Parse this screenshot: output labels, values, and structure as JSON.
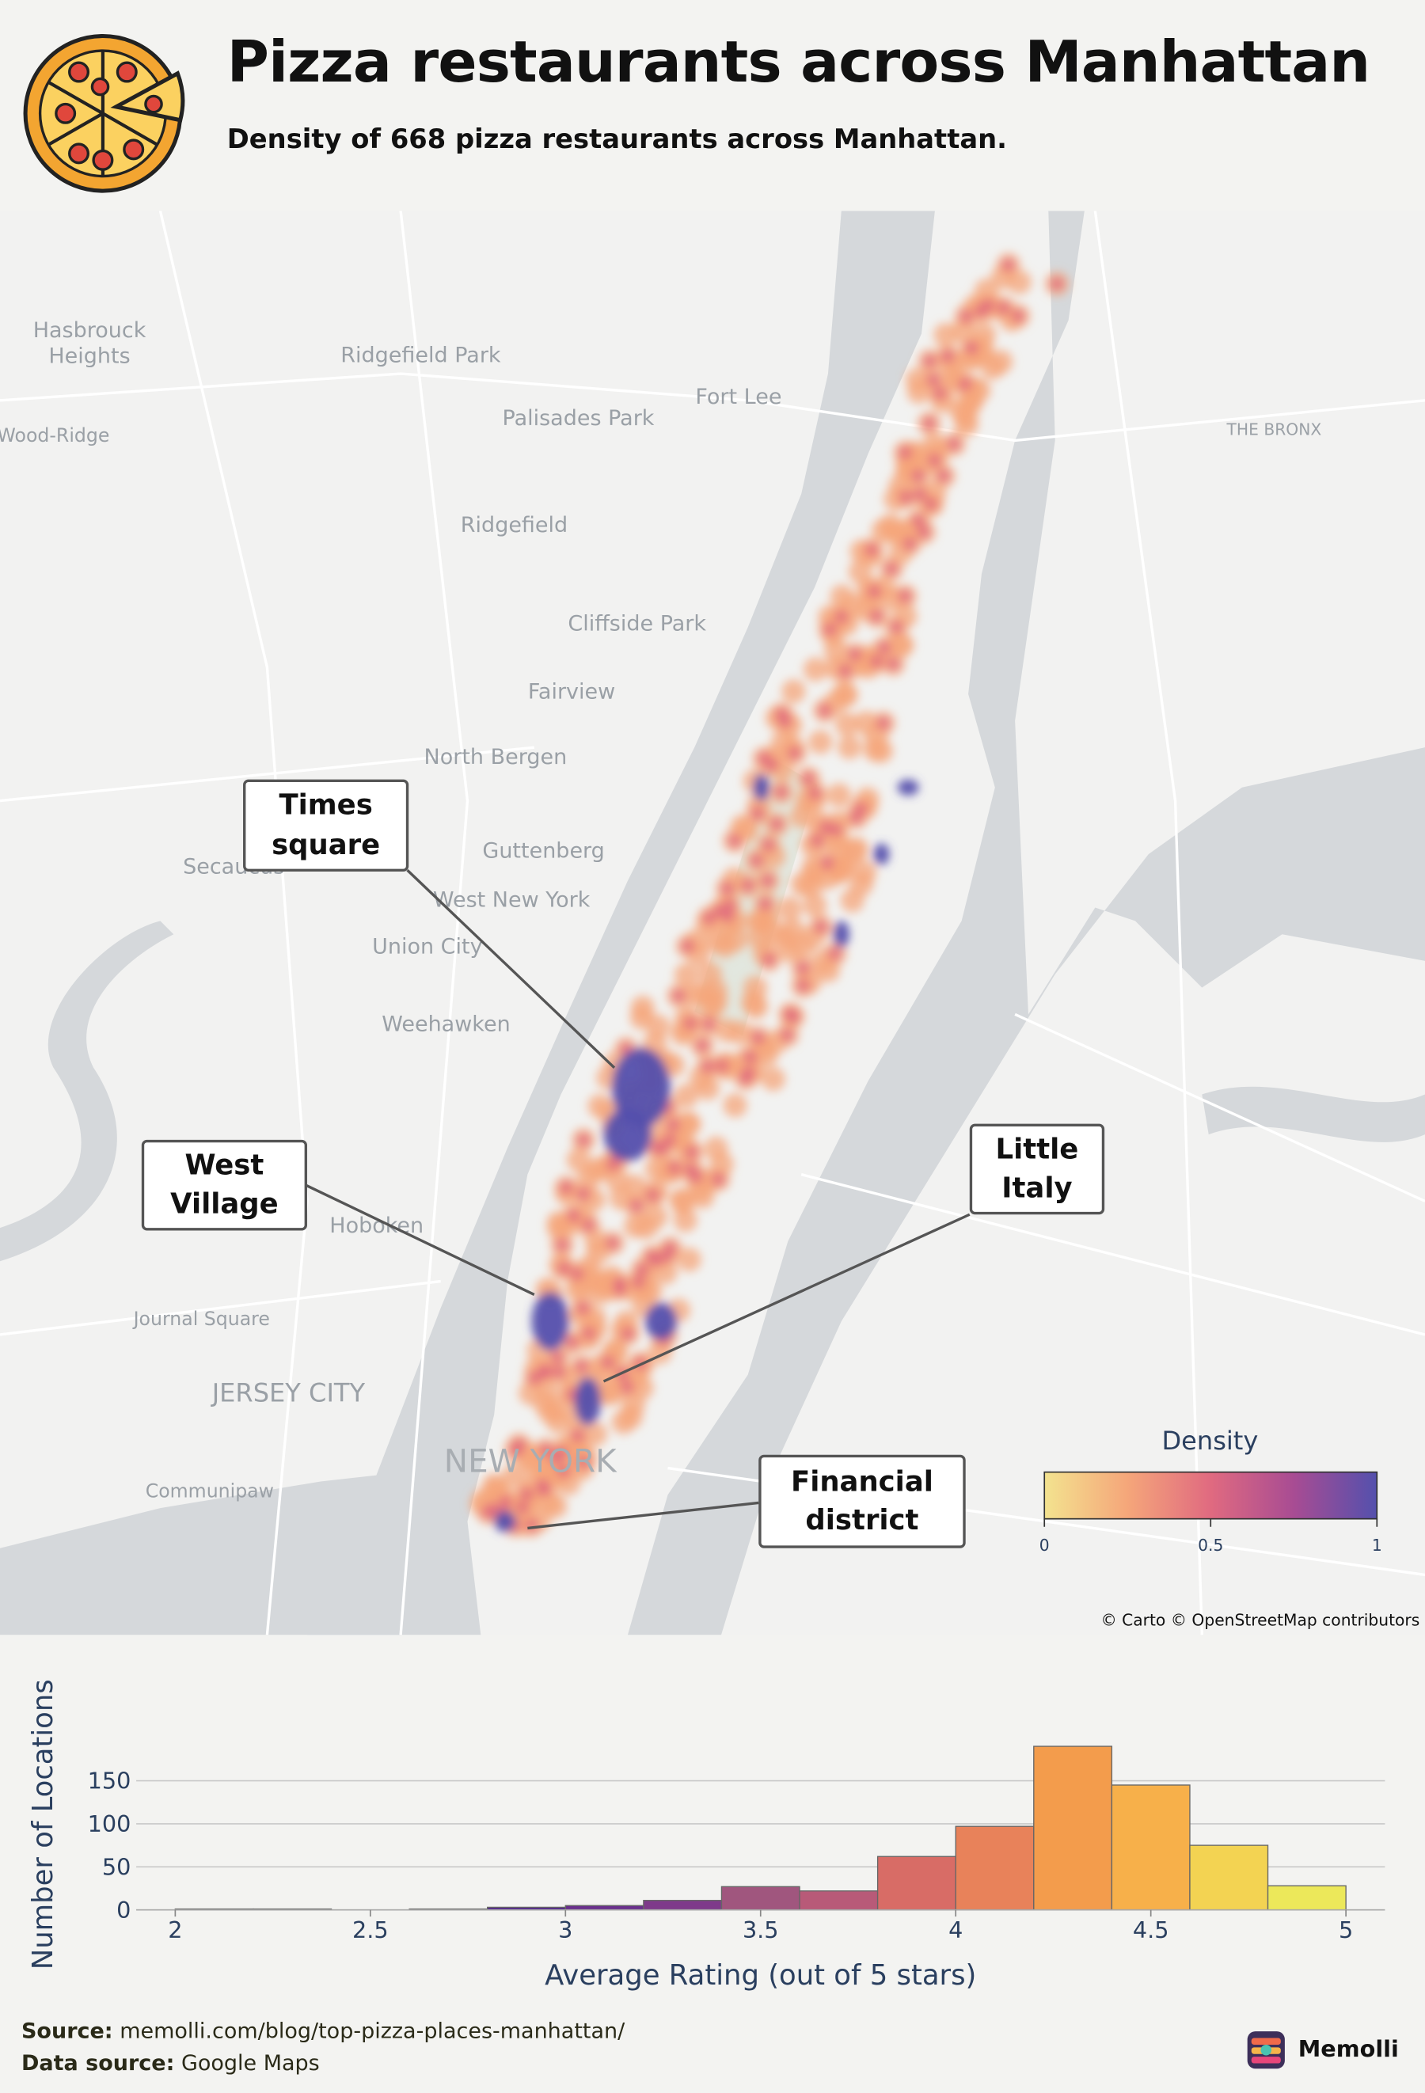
{
  "header": {
    "title": "Pizza restaurants across Manhattan",
    "subtitle": "Density of 668 pizza restaurants across Manhattan."
  },
  "map": {
    "places": [
      "Hasbrouck Heights",
      "Ridgefield Park",
      "Fort Lee",
      "Palisades Park",
      "THE BRONX",
      "Wood-Ridge",
      "Ridgefield",
      "Cliffside Park",
      "Fairview",
      "North Bergen",
      "Guttenberg",
      "Secaucus",
      "West New York",
      "Union City",
      "Weehawken",
      "Hoboken",
      "Journal Square",
      "JERSEY CITY",
      "NEW YORK",
      "Communipaw"
    ],
    "annotations": [
      "Times square",
      "West Village",
      "Little Italy",
      "Financial district"
    ],
    "attribution": "© Carto © OpenStreetMap contributors",
    "colorbar": {
      "title": "Density",
      "range": [
        0,
        1
      ],
      "ticks": [
        0,
        0.5,
        1
      ],
      "colors": [
        "#f3e38f",
        "#f5a67a",
        "#e06a80",
        "#a84c93",
        "#5450ad"
      ]
    }
  },
  "chart_data": {
    "type": "histogram",
    "bins": [
      2,
      2.2,
      2.4,
      2.6,
      2.8,
      3,
      3.2,
      3.4,
      3.6,
      3.8,
      4,
      4.2,
      4.4,
      4.6,
      4.8,
      5
    ],
    "values": [
      1,
      1,
      0,
      1,
      3,
      5,
      11,
      27,
      22,
      62,
      97,
      190,
      145,
      75,
      28
    ],
    "colors": [
      "#202a78",
      "#2a2a80",
      "#352a85",
      "#42298a",
      "#54298c",
      "#6a2f8c",
      "#7e3a8a",
      "#a0567e",
      "#b85a78",
      "#d86c66",
      "#e8825a",
      "#f39c4c",
      "#f7b04a",
      "#f3d352",
      "#ece85a"
    ],
    "xlim": [
      1.9,
      5.1
    ],
    "ylim": [
      0,
      200
    ],
    "xticks": [
      2,
      2.5,
      3,
      3.5,
      4,
      4.5,
      5
    ],
    "yticks": [
      0,
      50,
      100,
      150
    ],
    "x_label": "Average Rating (out of 5 stars)",
    "y_label": "Number of Locations",
    "grid": true
  },
  "footer": {
    "source_label": "Source:",
    "source": "memolli.com/blog/top-pizza-places-manhattan/",
    "data_label": "Data source:",
    "data": "Google Maps"
  },
  "brand": "Memolli"
}
